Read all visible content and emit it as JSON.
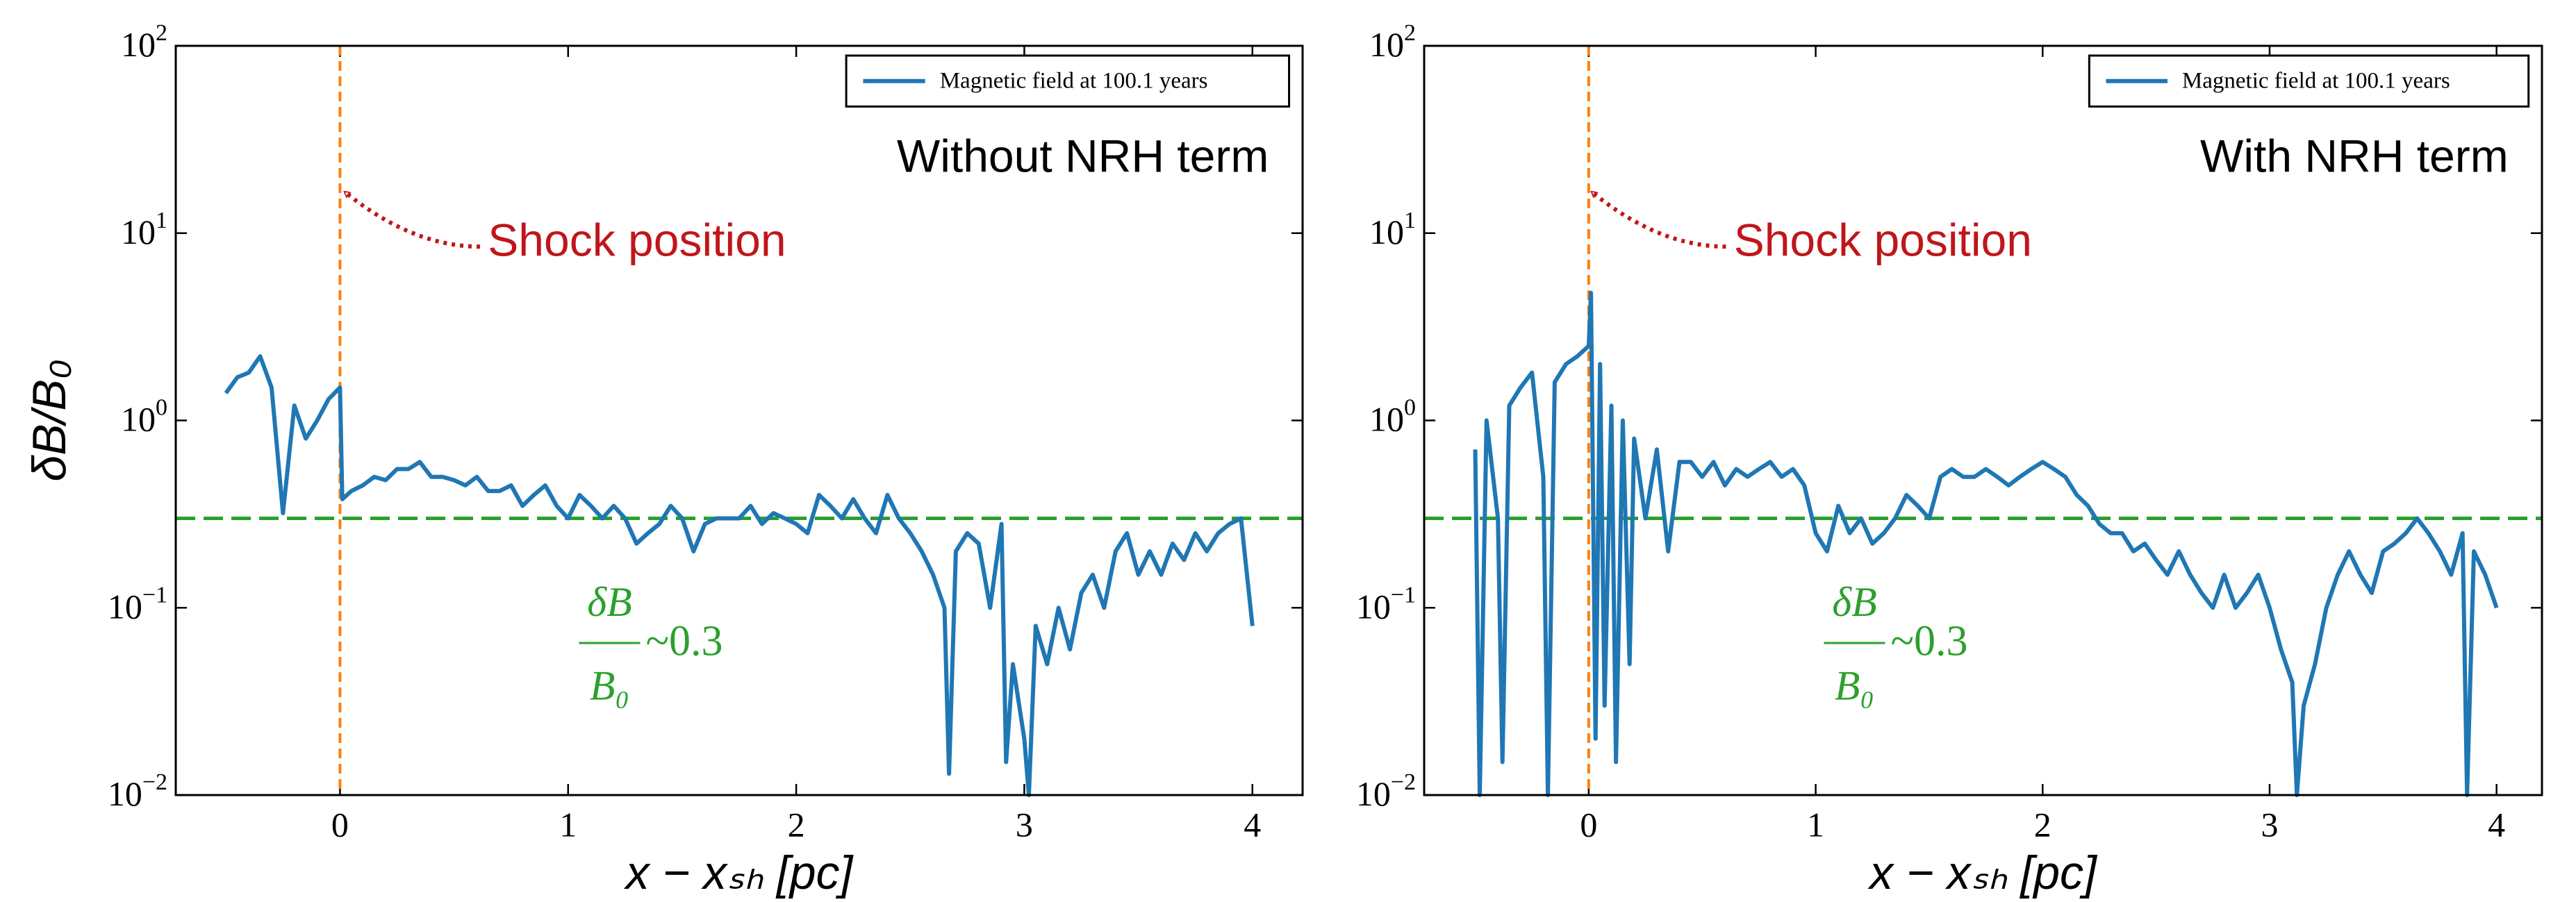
{
  "chart_data": [
    {
      "type": "line",
      "xlabel": "x − xₛₕ [pc]",
      "ylabel": "δB/B₀",
      "ylog": true,
      "legend": "upper right",
      "xlim": [
        -0.72,
        4.22
      ],
      "xticks": [
        0,
        1,
        2,
        3,
        4
      ],
      "ylim": [
        0.01,
        100
      ],
      "yticks": [
        {
          "value": 0.01,
          "label": "10",
          "exponent": "−2"
        },
        {
          "value": 0.1,
          "label": "10",
          "exponent": "−1"
        },
        {
          "value": 1,
          "label": "10",
          "exponent": "0"
        },
        {
          "value": 10,
          "label": "10",
          "exponent": "1"
        },
        {
          "value": 100,
          "label": "10",
          "exponent": "2"
        }
      ],
      "vlines": [
        {
          "x": 0,
          "color": "#ff7f0e"
        }
      ],
      "hlines": [
        {
          "y": 0.3,
          "color": "#2ca02c"
        }
      ],
      "annotations": {
        "panel_label": "Without NRH term",
        "arrow_label": "Shock position",
        "ratio_numerator": "δB",
        "ratio_denominator": "B₀",
        "ratio_value": "~0.3"
      },
      "series": [
        {
          "name": "Magnetic field at 100.1 years",
          "color": "#1f77b4",
          "x": [
            -0.5,
            -0.45,
            -0.4,
            -0.35,
            -0.3,
            -0.25,
            -0.2,
            -0.15,
            -0.1,
            -0.05,
            0,
            0.01,
            0.05,
            0.1,
            0.15,
            0.2,
            0.25,
            0.3,
            0.35,
            0.4,
            0.45,
            0.5,
            0.55,
            0.6,
            0.65,
            0.7,
            0.75,
            0.8,
            0.85,
            0.9,
            0.95,
            1.0,
            1.05,
            1.1,
            1.15,
            1.2,
            1.25,
            1.3,
            1.35,
            1.4,
            1.45,
            1.5,
            1.55,
            1.6,
            1.65,
            1.7,
            1.75,
            1.8,
            1.85,
            1.9,
            1.95,
            2.0,
            2.05,
            2.1,
            2.15,
            2.2,
            2.25,
            2.3,
            2.35,
            2.4,
            2.45,
            2.5,
            2.55,
            2.6,
            2.65,
            2.67,
            2.7,
            2.75,
            2.8,
            2.85,
            2.9,
            2.92,
            2.95,
            3.0,
            3.02,
            3.05,
            3.1,
            3.15,
            3.2,
            3.25,
            3.3,
            3.35,
            3.4,
            3.45,
            3.5,
            3.55,
            3.6,
            3.65,
            3.7,
            3.75,
            3.8,
            3.85,
            3.9,
            3.95,
            4.0
          ],
          "values": [
            1.4,
            1.7,
            1.8,
            2.2,
            1.5,
            0.32,
            1.2,
            0.8,
            1.0,
            1.3,
            1.5,
            0.38,
            0.42,
            0.45,
            0.5,
            0.48,
            0.55,
            0.55,
            0.6,
            0.5,
            0.5,
            0.48,
            0.45,
            0.5,
            0.42,
            0.42,
            0.45,
            0.35,
            0.4,
            0.45,
            0.35,
            0.3,
            0.4,
            0.35,
            0.3,
            0.35,
            0.3,
            0.22,
            0.25,
            0.28,
            0.35,
            0.3,
            0.2,
            0.28,
            0.3,
            0.3,
            0.3,
            0.35,
            0.28,
            0.32,
            0.3,
            0.28,
            0.25,
            0.4,
            0.35,
            0.3,
            0.38,
            0.3,
            0.25,
            0.4,
            0.3,
            0.25,
            0.2,
            0.15,
            0.1,
            0.013,
            0.2,
            0.25,
            0.22,
            0.1,
            0.28,
            0.015,
            0.05,
            0.02,
            0.01,
            0.08,
            0.05,
            0.1,
            0.06,
            0.12,
            0.15,
            0.1,
            0.2,
            0.25,
            0.15,
            0.2,
            0.15,
            0.22,
            0.18,
            0.25,
            0.2,
            0.25,
            0.28,
            0.3,
            0.08
          ]
        }
      ]
    },
    {
      "type": "line",
      "xlabel": "x − xₛₕ [pc]",
      "ylog": true,
      "legend": "upper right",
      "xlim": [
        -0.725,
        4.2
      ],
      "xticks": [
        0,
        1,
        2,
        3,
        4
      ],
      "ylim": [
        0.01,
        100
      ],
      "yticks": [
        {
          "value": 0.01,
          "label": "10",
          "exponent": "−2"
        },
        {
          "value": 0.1,
          "label": "10",
          "exponent": "−1"
        },
        {
          "value": 1,
          "label": "10",
          "exponent": "0"
        },
        {
          "value": 10,
          "label": "10",
          "exponent": "1"
        },
        {
          "value": 100,
          "label": "10",
          "exponent": "2"
        }
      ],
      "vlines": [
        {
          "x": 0,
          "color": "#ff7f0e"
        }
      ],
      "hlines": [
        {
          "y": 0.3,
          "color": "#2ca02c"
        }
      ],
      "annotations": {
        "panel_label": "With NRH term",
        "arrow_label": "Shock position",
        "ratio_numerator": "δB",
        "ratio_denominator": "B₀",
        "ratio_value": "~0.3"
      },
      "series": [
        {
          "name": "Magnetic field at 100.1 years",
          "color": "#1f77b4",
          "x": [
            -0.5,
            -0.48,
            -0.45,
            -0.4,
            -0.38,
            -0.35,
            -0.3,
            -0.25,
            -0.2,
            -0.18,
            -0.15,
            -0.1,
            -0.05,
            0.0,
            0.01,
            0.03,
            0.05,
            0.07,
            0.1,
            0.12,
            0.15,
            0.18,
            0.2,
            0.25,
            0.3,
            0.35,
            0.4,
            0.45,
            0.5,
            0.55,
            0.6,
            0.65,
            0.7,
            0.75,
            0.8,
            0.85,
            0.9,
            0.95,
            1.0,
            1.05,
            1.1,
            1.15,
            1.2,
            1.25,
            1.3,
            1.35,
            1.4,
            1.45,
            1.5,
            1.55,
            1.6,
            1.65,
            1.7,
            1.75,
            1.8,
            1.85,
            1.9,
            1.95,
            2.0,
            2.05,
            2.1,
            2.15,
            2.2,
            2.25,
            2.3,
            2.35,
            2.4,
            2.45,
            2.5,
            2.55,
            2.6,
            2.65,
            2.7,
            2.75,
            2.8,
            2.85,
            2.9,
            2.95,
            3.0,
            3.05,
            3.1,
            3.12,
            3.15,
            3.2,
            3.25,
            3.3,
            3.35,
            3.4,
            3.45,
            3.5,
            3.55,
            3.6,
            3.65,
            3.7,
            3.75,
            3.8,
            3.85,
            3.87,
            3.9,
            3.95,
            4.0
          ],
          "values": [
            0.7,
            0.01,
            1.0,
            0.3,
            0.015,
            1.2,
            1.5,
            1.8,
            0.5,
            0.01,
            1.6,
            2.0,
            2.2,
            2.5,
            4.8,
            0.02,
            2.0,
            0.03,
            1.2,
            0.015,
            1.0,
            0.05,
            0.8,
            0.3,
            0.7,
            0.2,
            0.6,
            0.6,
            0.5,
            0.6,
            0.45,
            0.55,
            0.5,
            0.55,
            0.6,
            0.5,
            0.55,
            0.45,
            0.25,
            0.2,
            0.35,
            0.25,
            0.3,
            0.22,
            0.25,
            0.3,
            0.4,
            0.35,
            0.3,
            0.5,
            0.55,
            0.5,
            0.5,
            0.55,
            0.5,
            0.45,
            0.5,
            0.55,
            0.6,
            0.55,
            0.5,
            0.4,
            0.35,
            0.28,
            0.25,
            0.25,
            0.2,
            0.22,
            0.18,
            0.15,
            0.2,
            0.15,
            0.12,
            0.1,
            0.15,
            0.1,
            0.12,
            0.15,
            0.1,
            0.06,
            0.04,
            0.01,
            0.03,
            0.05,
            0.1,
            0.15,
            0.2,
            0.15,
            0.12,
            0.2,
            0.22,
            0.25,
            0.3,
            0.25,
            0.2,
            0.15,
            0.25,
            0.01,
            0.2,
            0.15,
            0.1
          ]
        }
      ]
    }
  ]
}
